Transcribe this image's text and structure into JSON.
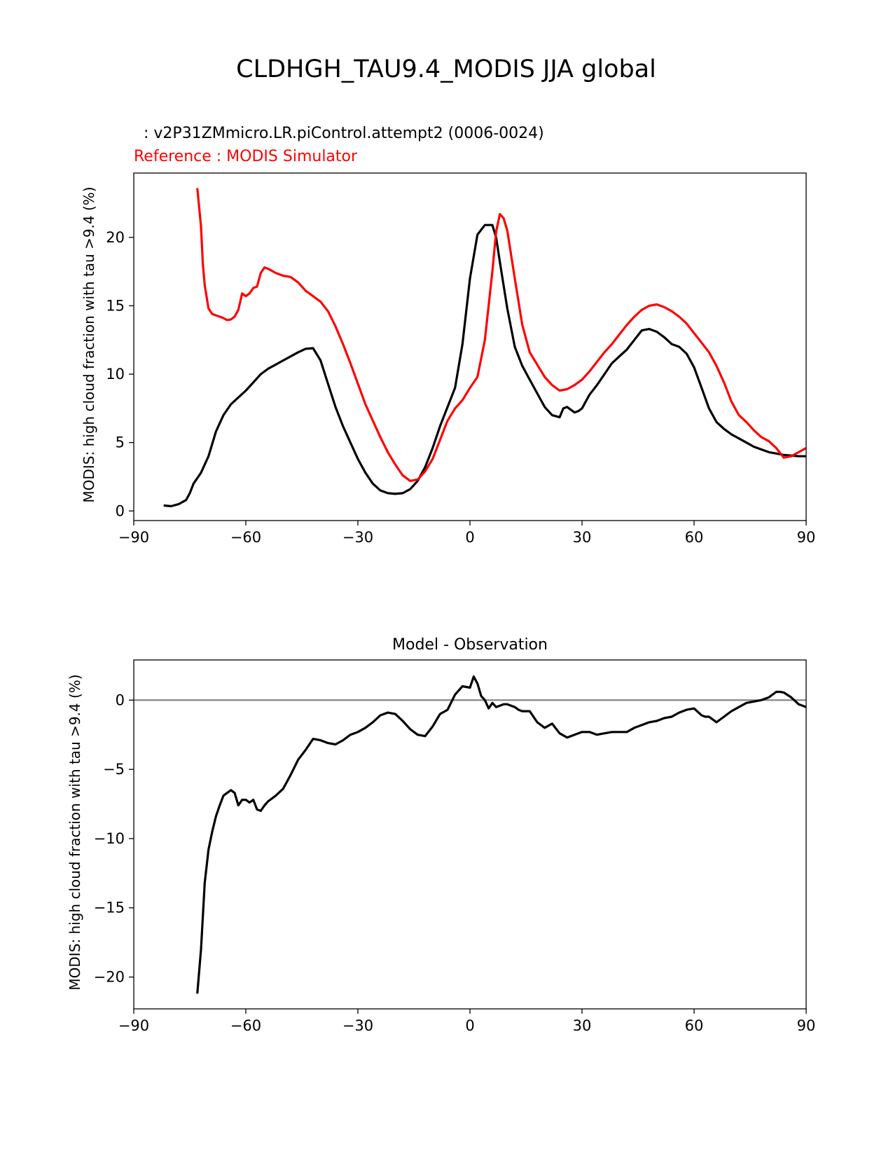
{
  "figure_title": "CLDHGH_TAU9.4_MODIS JJA global",
  "colors": {
    "test": "#000000",
    "reference": "#ff0000",
    "zero_line": "#808080",
    "axes": "#000000"
  },
  "chart_data": [
    {
      "type": "line",
      "test_label": ": v2P31ZMmicro.LR.piControl.attempt2 (0006-0024)",
      "reference_label": "Reference : MODIS Simulator",
      "xlabel": "",
      "ylabel": "MODIS: high cloud fraction with tau >9.4 (%)",
      "xlim": [
        -90,
        90
      ],
      "ylim": [
        -0.7,
        24.7
      ],
      "xticks": [
        -90,
        -60,
        -30,
        0,
        30,
        60,
        90
      ],
      "xtick_labels": [
        "−90",
        "−60",
        "−30",
        "0",
        "30",
        "60",
        "90"
      ],
      "yticks": [
        0,
        5,
        10,
        15,
        20
      ],
      "ytick_labels": [
        "0",
        "5",
        "10",
        "15",
        "20"
      ],
      "series": [
        {
          "name": "v2P31ZMmicro.LR.piControl.attempt2 (0006-0024)",
          "color": "#000000",
          "x": [
            -82,
            -80,
            -78,
            -76,
            -75,
            -74,
            -72,
            -70,
            -68,
            -66,
            -64,
            -62,
            -60,
            -58,
            -56,
            -54,
            -52,
            -50,
            -48,
            -46,
            -44,
            -42,
            -40,
            -38,
            -36,
            -34,
            -32,
            -30,
            -28,
            -26,
            -24,
            -22,
            -20,
            -18,
            -16,
            -14,
            -12,
            -10,
            -8,
            -6,
            -4,
            -2,
            0,
            2,
            4,
            6,
            7,
            8,
            9,
            10,
            12,
            14,
            16,
            18,
            20,
            22,
            24,
            25,
            26,
            27,
            28,
            29,
            30,
            31,
            32,
            34,
            36,
            38,
            40,
            42,
            44,
            46,
            48,
            50,
            52,
            54,
            56,
            58,
            60,
            62,
            64,
            66,
            68,
            70,
            72,
            74,
            76,
            78,
            80,
            82,
            84,
            86,
            88,
            90
          ],
          "y": [
            0.4,
            0.35,
            0.5,
            0.8,
            1.3,
            2.0,
            2.8,
            4.0,
            5.8,
            7.0,
            7.8,
            8.3,
            8.8,
            9.4,
            10.0,
            10.4,
            10.7,
            11.0,
            11.3,
            11.6,
            11.85,
            11.9,
            11.0,
            9.3,
            7.6,
            6.2,
            5.0,
            3.8,
            2.8,
            2.0,
            1.5,
            1.3,
            1.25,
            1.3,
            1.6,
            2.2,
            3.2,
            4.6,
            6.2,
            7.6,
            9.0,
            12.2,
            17.0,
            20.2,
            20.9,
            20.9,
            20.0,
            18.2,
            16.5,
            14.8,
            12.0,
            10.6,
            9.6,
            8.6,
            7.6,
            7.0,
            6.85,
            7.5,
            7.6,
            7.4,
            7.2,
            7.3,
            7.5,
            8.0,
            8.5,
            9.2,
            10.0,
            10.8,
            11.3,
            11.8,
            12.5,
            13.2,
            13.3,
            13.1,
            12.7,
            12.2,
            12.0,
            11.5,
            10.5,
            9.0,
            7.5,
            6.5,
            6.0,
            5.6,
            5.3,
            5.0,
            4.7,
            4.5,
            4.3,
            4.2,
            4.1,
            4.05,
            4.0,
            4.0
          ]
        },
        {
          "name": "MODIS Simulator",
          "color": "#ff0000",
          "x": [
            -73,
            -72,
            -71.5,
            -71,
            -70,
            -69,
            -68,
            -67,
            -66,
            -65,
            -64,
            -63,
            -62,
            -61,
            -60,
            -59,
            -58,
            -57,
            -56,
            -55,
            -54,
            -52,
            -50,
            -48,
            -46,
            -44,
            -42,
            -40,
            -38,
            -36,
            -34,
            -32,
            -30,
            -28,
            -26,
            -24,
            -22,
            -20,
            -18,
            -16,
            -14,
            -12,
            -10,
            -8,
            -6,
            -4,
            -2,
            0,
            2,
            4,
            6,
            7,
            8,
            9,
            10,
            12,
            14,
            16,
            18,
            20,
            22,
            24,
            26,
            28,
            30,
            32,
            34,
            36,
            38,
            40,
            42,
            44,
            46,
            48,
            50,
            52,
            54,
            56,
            58,
            60,
            62,
            64,
            66,
            68,
            70,
            72,
            74,
            76,
            78,
            80,
            82,
            84,
            86,
            88,
            90
          ],
          "y": [
            23.6,
            20.8,
            18.0,
            16.5,
            14.8,
            14.4,
            14.3,
            14.2,
            14.1,
            13.95,
            14.0,
            14.2,
            14.7,
            15.9,
            15.7,
            15.9,
            16.3,
            16.4,
            17.4,
            17.8,
            17.7,
            17.4,
            17.2,
            17.1,
            16.7,
            16.1,
            15.7,
            15.3,
            14.6,
            13.5,
            12.2,
            10.8,
            9.3,
            7.8,
            6.6,
            5.4,
            4.3,
            3.4,
            2.6,
            2.2,
            2.3,
            2.9,
            3.8,
            5.2,
            6.6,
            7.5,
            8.1,
            9.0,
            9.8,
            12.5,
            17.5,
            20.4,
            21.7,
            21.4,
            20.5,
            17.0,
            13.6,
            11.6,
            10.7,
            9.8,
            9.2,
            8.8,
            8.9,
            9.2,
            9.6,
            10.2,
            10.9,
            11.6,
            12.2,
            12.9,
            13.6,
            14.2,
            14.7,
            15.0,
            15.1,
            14.9,
            14.6,
            14.2,
            13.7,
            13.0,
            12.3,
            11.6,
            10.6,
            9.4,
            8.0,
            7.0,
            6.5,
            5.9,
            5.4,
            5.1,
            4.6,
            3.9,
            4.0,
            4.3,
            4.6
          ]
        }
      ]
    },
    {
      "type": "line",
      "title": "Model - Observation",
      "xlabel": "",
      "ylabel": "MODIS: high cloud fraction with tau >9.4 (%)",
      "xlim": [
        -90,
        90
      ],
      "ylim": [
        -22.3,
        2.9
      ],
      "xticks": [
        -90,
        -60,
        -30,
        0,
        30,
        60,
        90
      ],
      "xtick_labels": [
        "−90",
        "−60",
        "−30",
        "0",
        "30",
        "60",
        "90"
      ],
      "yticks": [
        -20,
        -15,
        -10,
        -5,
        0
      ],
      "ytick_labels": [
        "−20",
        "−15",
        "−10",
        "−5",
        "0"
      ],
      "zero_line": 0,
      "series": [
        {
          "name": "Model - Observation",
          "color": "#000000",
          "x": [
            -73,
            -72,
            -71,
            -70,
            -69,
            -68,
            -67,
            -66,
            -65,
            -64,
            -63,
            -62,
            -61,
            -60,
            -59,
            -58,
            -57,
            -56,
            -55,
            -54,
            -52,
            -50,
            -48,
            -46,
            -44,
            -42,
            -40,
            -38,
            -36,
            -34,
            -32,
            -30,
            -28,
            -26,
            -24,
            -22,
            -20,
            -18,
            -16,
            -14,
            -12,
            -10,
            -8,
            -6,
            -4,
            -2,
            0,
            1,
            2,
            3,
            4,
            5,
            6,
            7,
            8,
            9,
            10,
            11,
            12,
            13,
            14,
            16,
            18,
            20,
            22,
            24,
            26,
            28,
            30,
            32,
            34,
            36,
            38,
            40,
            42,
            44,
            46,
            48,
            50,
            52,
            54,
            56,
            58,
            60,
            62,
            63,
            64,
            66,
            68,
            70,
            72,
            74,
            76,
            78,
            80,
            82,
            83,
            84,
            86,
            88,
            90
          ],
          "y": [
            -21.2,
            -18.0,
            -13.2,
            -10.8,
            -9.5,
            -8.4,
            -7.6,
            -6.9,
            -6.7,
            -6.5,
            -6.7,
            -7.6,
            -7.2,
            -7.2,
            -7.4,
            -7.2,
            -7.9,
            -8.0,
            -7.6,
            -7.3,
            -6.9,
            -6.4,
            -5.4,
            -4.3,
            -3.6,
            -2.8,
            -2.9,
            -3.1,
            -3.2,
            -2.9,
            -2.5,
            -2.3,
            -2.0,
            -1.6,
            -1.1,
            -0.9,
            -1.0,
            -1.5,
            -2.1,
            -2.5,
            -2.6,
            -1.9,
            -1.0,
            -0.7,
            0.4,
            1.0,
            0.9,
            1.7,
            1.2,
            0.3,
            0.0,
            -0.6,
            -0.2,
            -0.5,
            -0.4,
            -0.3,
            -0.3,
            -0.4,
            -0.5,
            -0.7,
            -0.8,
            -0.8,
            -1.6,
            -2.0,
            -1.7,
            -2.4,
            -2.7,
            -2.5,
            -2.3,
            -2.3,
            -2.5,
            -2.4,
            -2.3,
            -2.3,
            -2.3,
            -2.0,
            -1.8,
            -1.6,
            -1.5,
            -1.3,
            -1.2,
            -0.9,
            -0.7,
            -0.6,
            -1.1,
            -1.2,
            -1.2,
            -1.6,
            -1.2,
            -0.8,
            -0.5,
            -0.2,
            -0.1,
            0.0,
            0.2,
            0.6,
            0.6,
            0.55,
            0.2,
            -0.3,
            -0.5
          ]
        }
      ]
    }
  ]
}
